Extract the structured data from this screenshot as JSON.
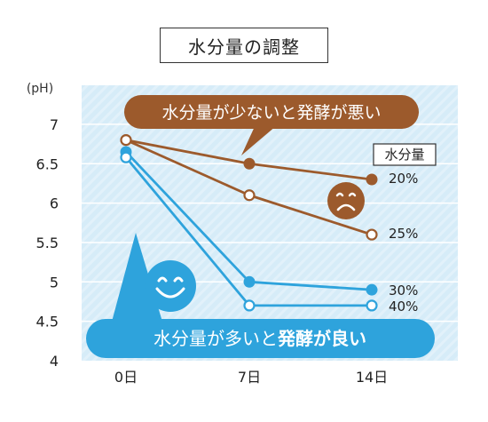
{
  "chart_data": {
    "type": "line",
    "title": "水分量の調整",
    "xlabel": "",
    "ylabel": "(pH)",
    "categories": [
      "0日",
      "7日",
      "14日"
    ],
    "ylim": [
      4,
      7
    ],
    "yticks": [
      "4",
      "4.5",
      "5",
      "5.5",
      "6",
      "6.5",
      "7"
    ],
    "legend_title": "水分量",
    "series": [
      {
        "name": "20%",
        "values": [
          6.8,
          6.5,
          6.3
        ],
        "color": "#9c5a2c",
        "marker": "filled"
      },
      {
        "name": "25%",
        "values": [
          6.8,
          6.1,
          5.6
        ],
        "color": "#9c5a2c",
        "marker": "open"
      },
      {
        "name": "30%",
        "values": [
          6.65,
          5.0,
          4.9
        ],
        "color": "#2ea3dc",
        "marker": "filled"
      },
      {
        "name": "40%",
        "values": [
          6.58,
          4.7,
          4.7
        ],
        "color": "#2ea3dc",
        "marker": "open"
      }
    ],
    "annotations": {
      "bad": "水分量が少ないと発酵が悪い",
      "good_prefix": "水分量が多いと",
      "good_emph": "発酵が良い"
    }
  },
  "colors": {
    "plot_bg": "#d6ecf8",
    "brown": "#9c5a2c",
    "blue": "#2ea3dc"
  },
  "icons": [
    "sad-face-icon",
    "smile-face-icon"
  ]
}
